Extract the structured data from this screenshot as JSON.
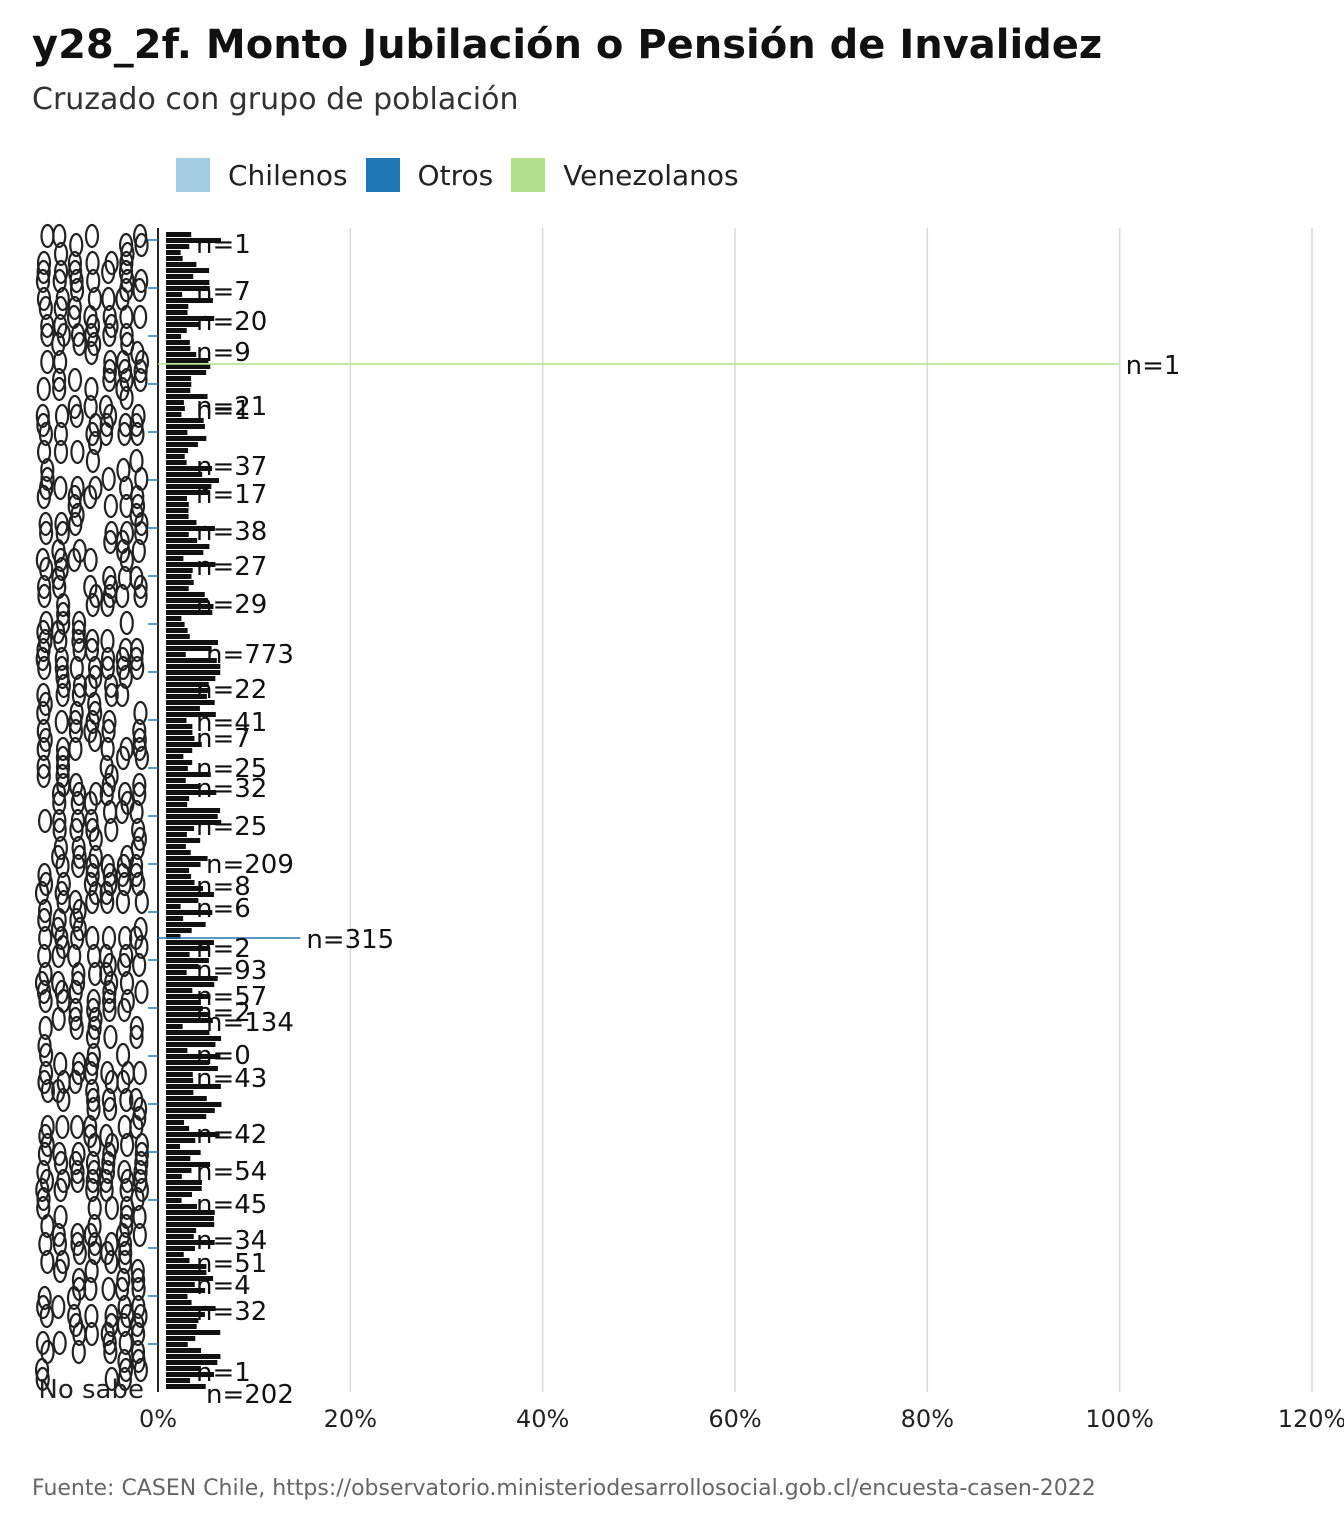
{
  "chart_data": {
    "type": "bar",
    "orientation": "horizontal",
    "title": "y28_2f. Monto Jubilación o Pensión de Invalidez",
    "subtitle": "Cruzado con grupo de población",
    "caption": "Fuente: CASEN Chile, https://observatorio.ministeriodesarrollosocial.gob.cl/encuesta-casen-2022",
    "xlim": [
      0,
      120
    ],
    "x_ticks": [
      "0%",
      "20%",
      "40%",
      "60%",
      "80%",
      "100%",
      "120%"
    ],
    "x_tick_values": [
      0,
      20,
      40,
      60,
      80,
      100,
      120
    ],
    "grid": true,
    "legend_position": "top",
    "colors": {
      "Chilenos": "#a6cee3",
      "Otros": "#1f78b4",
      "Venezolanos": "#b2df8a"
    },
    "visible_category_labels": [
      "No sabe"
    ],
    "series": [
      {
        "name": "Chilenos",
        "color": "#a6cee3"
      },
      {
        "name": "Otros",
        "color": "#1f78b4"
      },
      {
        "name": "Venezolanos",
        "color": "#b2df8a"
      }
    ],
    "highlighted_bars": [
      {
        "series": "Venezolanos",
        "value": 100,
        "label": "n=1"
      },
      {
        "series": "Otros",
        "value": 14.8,
        "label": "n=315"
      }
    ],
    "visible_data_labels": [
      "n=1",
      "n=7",
      "n=20",
      "n=9",
      "n=1",
      "n=21",
      "n=37",
      "n=17",
      "n=38",
      "n=27",
      "n=29",
      "n=773",
      "n=22",
      "n=41",
      "n=7",
      "n=25",
      "n=32",
      "n=25",
      "n=209",
      "n=8",
      "n=6",
      "n=2",
      "n=93",
      "n=57",
      "n=2",
      "n=134",
      "n=0",
      "n=43",
      "n=42",
      "n=54",
      "n=45",
      "n=34",
      "n=51",
      "n=4",
      "n=32",
      "n=1",
      "n=202"
    ]
  }
}
